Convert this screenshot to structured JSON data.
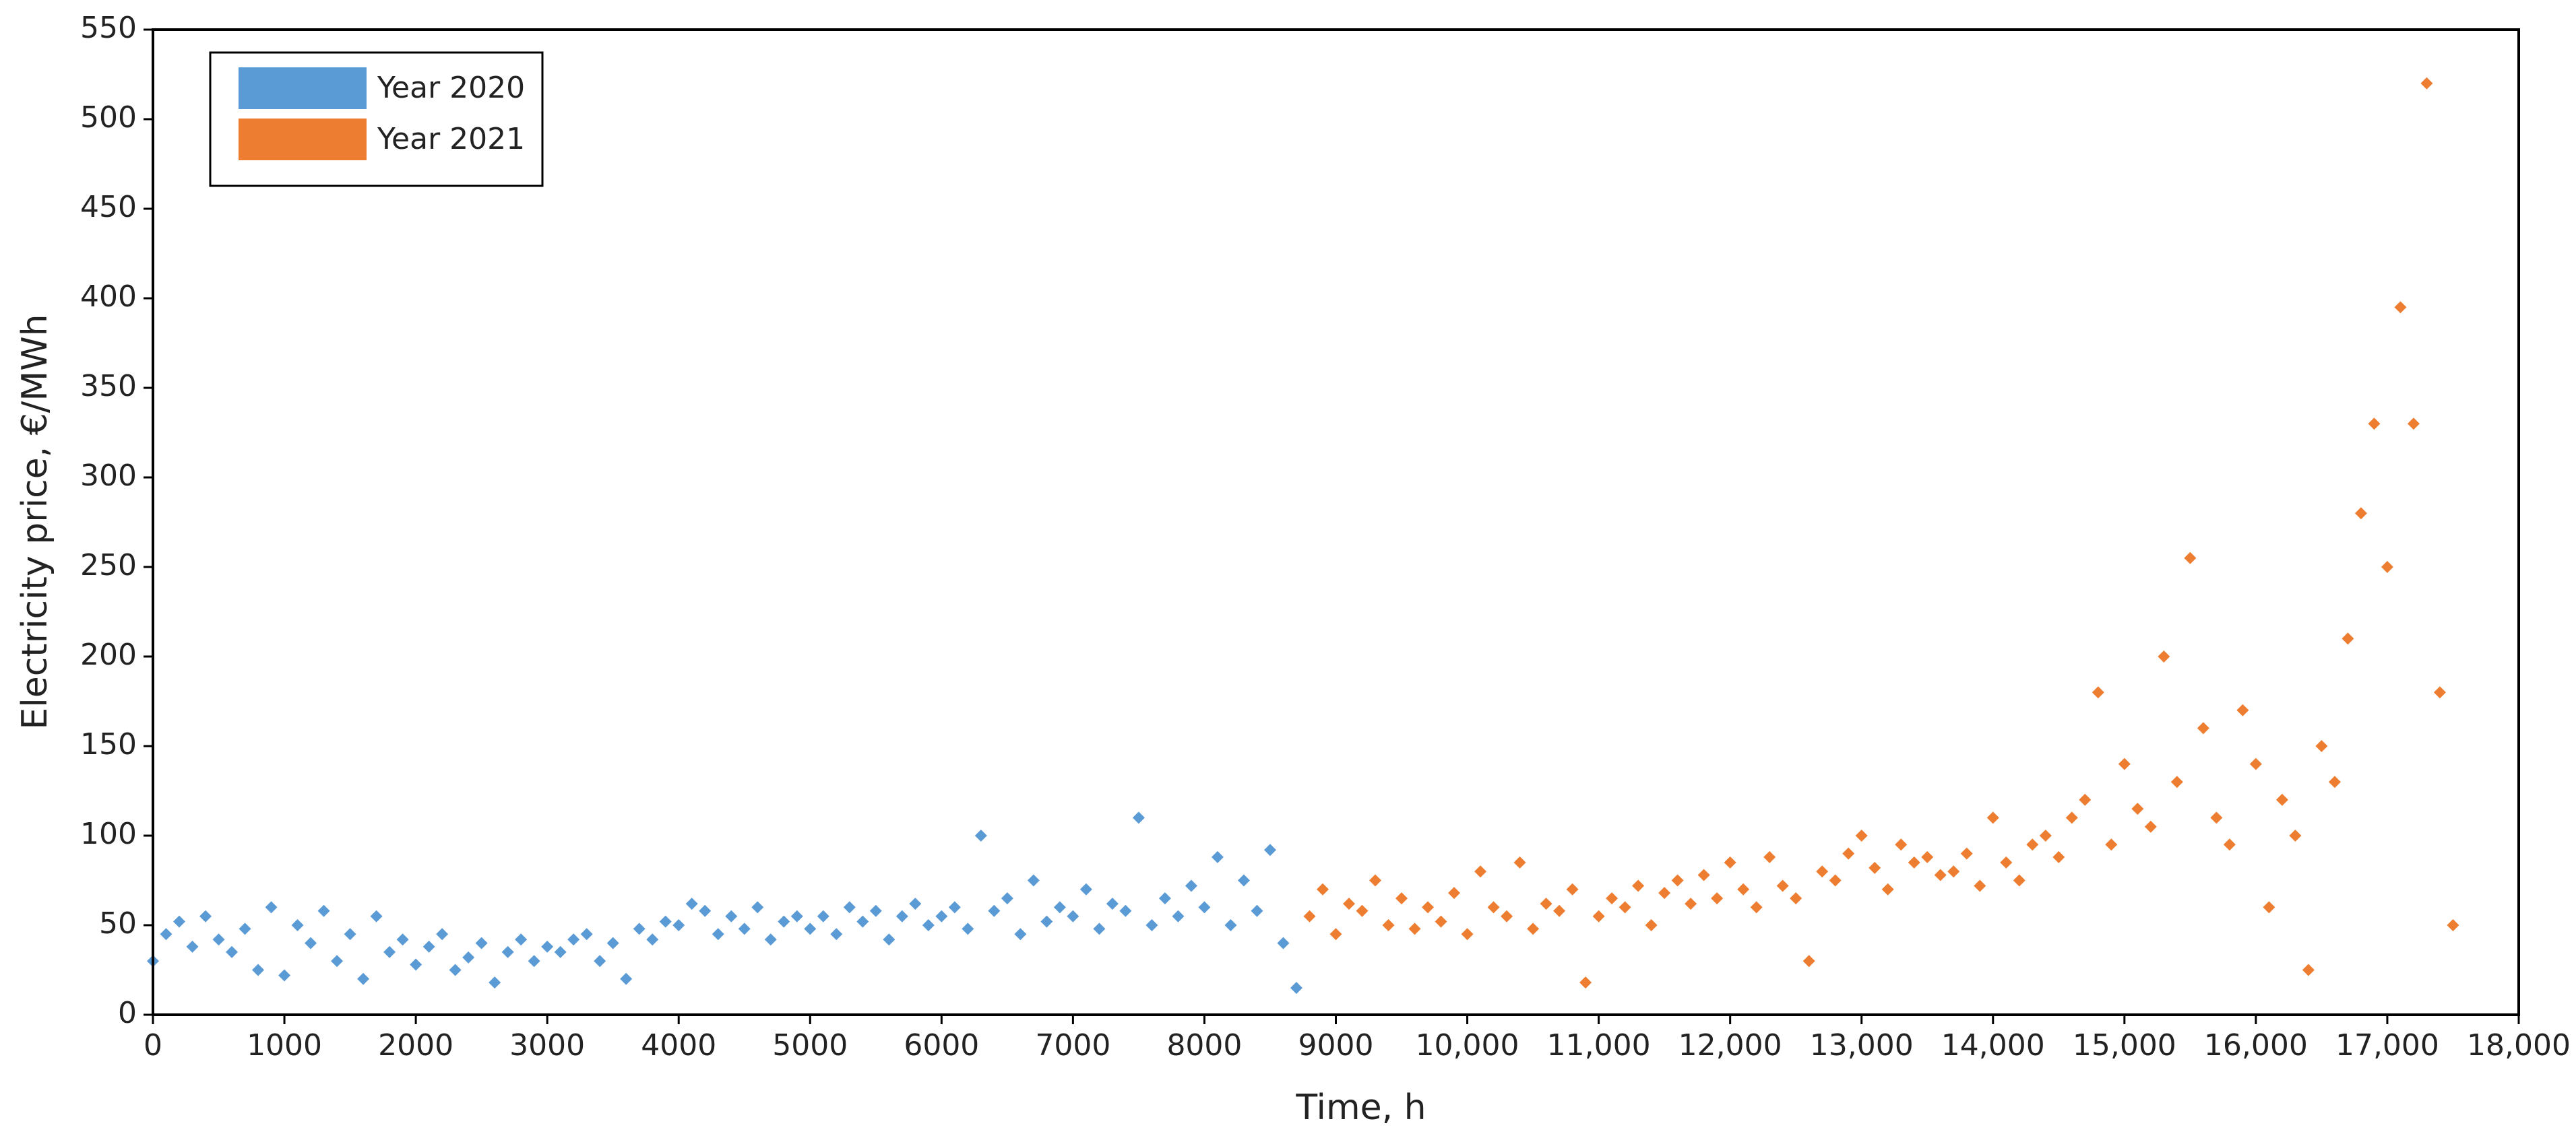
{
  "chart_data": {
    "type": "scatter",
    "x_label": "Time, h",
    "y_label": "Electricity price, €/MWh",
    "xlim": [
      0,
      18000
    ],
    "xticks": [
      0,
      1000,
      2000,
      3000,
      4000,
      5000,
      6000,
      7000,
      8000,
      9000,
      {
        "value": 10000,
        "label": "10,000"
      },
      {
        "value": 11000,
        "label": "11,000"
      },
      {
        "value": 12000,
        "label": "12,000"
      },
      {
        "value": 13000,
        "label": "13,000"
      },
      {
        "value": 14000,
        "label": "14,000"
      },
      {
        "value": 15000,
        "label": "15,000"
      },
      {
        "value": 16000,
        "label": "16,000"
      },
      {
        "value": 17000,
        "label": "17,000"
      },
      {
        "value": 18000,
        "label": "18,000"
      }
    ],
    "ylim": [
      0,
      550
    ],
    "yticks": [
      0,
      50,
      100,
      150,
      200,
      250,
      300,
      350,
      400,
      450,
      500,
      550
    ],
    "legend": "top-left",
    "series": [
      {
        "name": "Year 2020",
        "color": "#5b9bd5",
        "x": [
          0,
          100,
          200,
          300,
          400,
          500,
          600,
          700,
          800,
          900,
          1000,
          1100,
          1200,
          1300,
          1400,
          1500,
          1600,
          1700,
          1800,
          1900,
          2000,
          2100,
          2200,
          2300,
          2400,
          2500,
          2600,
          2700,
          2800,
          2900,
          3000,
          3100,
          3200,
          3300,
          3400,
          3500,
          3600,
          3700,
          3800,
          3900,
          4000,
          4100,
          4200,
          4300,
          4400,
          4500,
          4600,
          4700,
          4800,
          4900,
          5000,
          5100,
          5200,
          5300,
          5400,
          5500,
          5600,
          5700,
          5800,
          5900,
          6000,
          6100,
          6200,
          6300,
          6400,
          6500,
          6600,
          6700,
          6800,
          6900,
          7000,
          7100,
          7200,
          7300,
          7400,
          7500,
          7600,
          7700,
          7800,
          7900,
          8000,
          8100,
          8200,
          8300,
          8400,
          8500,
          8600,
          8700
        ],
        "values": [
          30,
          45,
          52,
          38,
          55,
          42,
          35,
          48,
          25,
          60,
          22,
          50,
          40,
          58,
          30,
          45,
          20,
          55,
          35,
          42,
          28,
          38,
          45,
          25,
          32,
          40,
          18,
          35,
          42,
          30,
          38,
          35,
          42,
          45,
          30,
          40,
          20,
          48,
          42,
          52,
          50,
          62,
          58,
          45,
          55,
          48,
          60,
          42,
          52,
          55,
          48,
          55,
          45,
          60,
          52,
          58,
          42,
          55,
          62,
          50,
          55,
          60,
          48,
          100,
          58,
          65,
          45,
          75,
          52,
          60,
          55,
          70,
          48,
          62,
          58,
          110,
          50,
          65,
          55,
          72,
          60,
          88,
          50,
          75,
          58,
          92,
          40,
          15
        ]
      },
      {
        "name": "Year 2021",
        "color": "#ed7d31",
        "x": [
          8800,
          8900,
          9000,
          9100,
          9200,
          9300,
          9400,
          9500,
          9600,
          9700,
          9800,
          9900,
          10000,
          10100,
          10200,
          10300,
          10400,
          10500,
          10600,
          10700,
          10800,
          10900,
          11000,
          11100,
          11200,
          11300,
          11400,
          11500,
          11600,
          11700,
          11800,
          11900,
          12000,
          12100,
          12200,
          12300,
          12400,
          12500,
          12600,
          12700,
          12800,
          12900,
          13000,
          13100,
          13200,
          13300,
          13400,
          13500,
          13600,
          13700,
          13800,
          13900,
          14000,
          14100,
          14200,
          14300,
          14400,
          14500,
          14600,
          14700,
          14800,
          14900,
          15000,
          15100,
          15200,
          15300,
          15400,
          15500,
          15600,
          15700,
          15800,
          15900,
          16000,
          16100,
          16200,
          16300,
          16400,
          16500,
          16600,
          16700,
          16800,
          16900,
          17000,
          17100,
          17200,
          17300,
          17400,
          17500
        ],
        "values": [
          55,
          70,
          45,
          62,
          58,
          75,
          50,
          65,
          48,
          60,
          52,
          68,
          45,
          80,
          60,
          55,
          85,
          48,
          62,
          58,
          70,
          18,
          55,
          65,
          60,
          72,
          50,
          68,
          75,
          62,
          78,
          65,
          85,
          70,
          60,
          88,
          72,
          65,
          30,
          80,
          75,
          90,
          100,
          82,
          70,
          95,
          85,
          88,
          78,
          80,
          90,
          72,
          110,
          85,
          75,
          95,
          100,
          88,
          110,
          120,
          180,
          95,
          140,
          115,
          105,
          200,
          130,
          255,
          160,
          110,
          95,
          170,
          140,
          60,
          120,
          100,
          25,
          150,
          130,
          210,
          280,
          330,
          250,
          395,
          330,
          520,
          180,
          50
        ]
      }
    ]
  }
}
